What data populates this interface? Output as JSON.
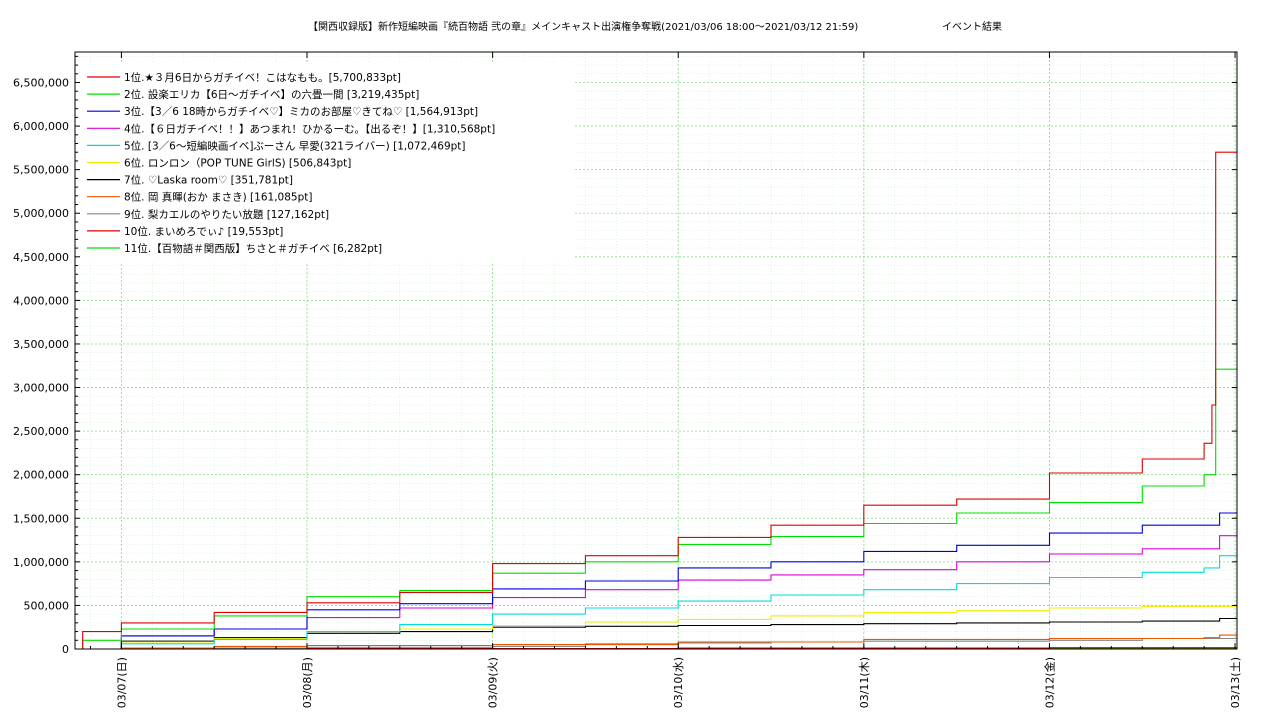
{
  "chart_data": {
    "type": "line",
    "title": "【関西収録版】新作短編映画『続百物語 弐の章』メインキャスト出演権争奪戦(2021/03/06 18:00〜2021/03/12 21:59)",
    "title_suffix": "イベント結果",
    "xlabel": "",
    "ylabel": "",
    "x_domain": [
      "2021-03-06 18:00",
      "2021-03-13 00:15"
    ],
    "ylim": [
      0,
      6850000
    ],
    "y_ticks": [
      0,
      500000,
      1000000,
      1500000,
      2000000,
      2500000,
      3000000,
      3500000,
      4000000,
      4500000,
      5000000,
      5500000,
      6000000,
      6500000
    ],
    "y_tick_labels": [
      "0",
      "500,000",
      "1,000,000",
      "1,500,000",
      "2,000,000",
      "2,500,000",
      "3,000,000",
      "3,500,000",
      "4,000,000",
      "4,500,000",
      "5,000,000",
      "5,500,000",
      "6,000,000",
      "6,500,000"
    ],
    "x_ticks": [
      "2021-03-07 00:00",
      "2021-03-08 00:00",
      "2021-03-09 00:00",
      "2021-03-10 00:00",
      "2021-03-11 00:00",
      "2021-03-12 00:00",
      "2021-03-13 00:00"
    ],
    "x_tick_labels": [
      "03/07(日)",
      "03/08(月)",
      "03/09(火)",
      "03/10(水)",
      "03/11(木)",
      "03/12(金)",
      "03/13(土)"
    ],
    "grid": true,
    "legend_position": "top-left",
    "series": [
      {
        "name": "1位.★３月6日からガチイベ！こはなもも。[5,700,833pt]",
        "color": "#dd0000",
        "points": [
          [
            "2021-03-06 18:00",
            0
          ],
          [
            "2021-03-06 19:00",
            200000
          ],
          [
            "2021-03-07 00:00",
            300000
          ],
          [
            "2021-03-07 12:00",
            420000
          ],
          [
            "2021-03-08 00:00",
            530000
          ],
          [
            "2021-03-08 12:00",
            650000
          ],
          [
            "2021-03-09 00:00",
            980000
          ],
          [
            "2021-03-09 12:00",
            1070000
          ],
          [
            "2021-03-10 00:00",
            1280000
          ],
          [
            "2021-03-10 12:00",
            1420000
          ],
          [
            "2021-03-11 00:00",
            1650000
          ],
          [
            "2021-03-11 12:00",
            1720000
          ],
          [
            "2021-03-12 00:00",
            2020000
          ],
          [
            "2021-03-12 12:00",
            2180000
          ],
          [
            "2021-03-12 20:00",
            2360000
          ],
          [
            "2021-03-12 21:00",
            2800000
          ],
          [
            "2021-03-12 21:30",
            5700000
          ],
          [
            "2021-03-13 00:15",
            5700833
          ]
        ]
      },
      {
        "name": "2位. 設楽エリカ【6日〜ガチイベ】の六畳一間 [3,219,435pt]",
        "color": "#00dd00",
        "points": [
          [
            "2021-03-06 18:00",
            0
          ],
          [
            "2021-03-06 19:00",
            100000
          ],
          [
            "2021-03-07 00:00",
            230000
          ],
          [
            "2021-03-07 12:00",
            380000
          ],
          [
            "2021-03-08 00:00",
            600000
          ],
          [
            "2021-03-08 12:00",
            670000
          ],
          [
            "2021-03-09 00:00",
            870000
          ],
          [
            "2021-03-09 12:00",
            1000000
          ],
          [
            "2021-03-10 00:00",
            1200000
          ],
          [
            "2021-03-10 12:00",
            1290000
          ],
          [
            "2021-03-11 00:00",
            1440000
          ],
          [
            "2021-03-11 12:00",
            1560000
          ],
          [
            "2021-03-12 00:00",
            1680000
          ],
          [
            "2021-03-12 12:00",
            1870000
          ],
          [
            "2021-03-12 20:00",
            2000000
          ],
          [
            "2021-03-12 21:30",
            3210000
          ],
          [
            "2021-03-13 00:15",
            3219435
          ]
        ]
      },
      {
        "name": "3位.【3／6 18時からガチイベ♡】ミカのお部屋♡きてね♡ [1,564,913pt]",
        "color": "#0000dd",
        "points": [
          [
            "2021-03-06 18:00",
            0
          ],
          [
            "2021-03-07 00:00",
            150000
          ],
          [
            "2021-03-07 12:00",
            230000
          ],
          [
            "2021-03-08 00:00",
            450000
          ],
          [
            "2021-03-08 12:00",
            520000
          ],
          [
            "2021-03-09 00:00",
            690000
          ],
          [
            "2021-03-09 12:00",
            780000
          ],
          [
            "2021-03-10 00:00",
            930000
          ],
          [
            "2021-03-10 12:00",
            1000000
          ],
          [
            "2021-03-11 00:00",
            1120000
          ],
          [
            "2021-03-11 12:00",
            1190000
          ],
          [
            "2021-03-12 00:00",
            1330000
          ],
          [
            "2021-03-12 12:00",
            1420000
          ],
          [
            "2021-03-12 22:00",
            1560000
          ],
          [
            "2021-03-13 00:15",
            1564913
          ]
        ]
      },
      {
        "name": "4位.【６日ガチイベ！！】あつまれ！ひかるーむ。【出るぞ！】[1,310,568pt]",
        "color": "#dd00dd",
        "points": [
          [
            "2021-03-06 18:00",
            0
          ],
          [
            "2021-03-07 00:00",
            150000
          ],
          [
            "2021-03-07 12:00",
            230000
          ],
          [
            "2021-03-08 00:00",
            360000
          ],
          [
            "2021-03-08 12:00",
            470000
          ],
          [
            "2021-03-09 00:00",
            590000
          ],
          [
            "2021-03-09 12:00",
            680000
          ],
          [
            "2021-03-10 00:00",
            790000
          ],
          [
            "2021-03-10 12:00",
            850000
          ],
          [
            "2021-03-11 00:00",
            910000
          ],
          [
            "2021-03-11 12:00",
            1000000
          ],
          [
            "2021-03-12 00:00",
            1090000
          ],
          [
            "2021-03-12 12:00",
            1150000
          ],
          [
            "2021-03-12 22:00",
            1300000
          ],
          [
            "2021-03-13 00:15",
            1310568
          ]
        ]
      },
      {
        "name": "5位. [3／6〜短編映画イベ]ぶーさん 早愛(321ライバー) [1,072,469pt]",
        "color": "#00dddd",
        "points": [
          [
            "2021-03-06 18:00",
            0
          ],
          [
            "2021-03-07 00:00",
            60000
          ],
          [
            "2021-03-07 12:00",
            110000
          ],
          [
            "2021-03-08 00:00",
            200000
          ],
          [
            "2021-03-08 12:00",
            280000
          ],
          [
            "2021-03-09 00:00",
            400000
          ],
          [
            "2021-03-09 12:00",
            470000
          ],
          [
            "2021-03-10 00:00",
            550000
          ],
          [
            "2021-03-10 12:00",
            620000
          ],
          [
            "2021-03-11 00:00",
            680000
          ],
          [
            "2021-03-11 12:00",
            750000
          ],
          [
            "2021-03-12 00:00",
            820000
          ],
          [
            "2021-03-12 12:00",
            880000
          ],
          [
            "2021-03-12 20:00",
            930000
          ],
          [
            "2021-03-12 22:00",
            1070000
          ],
          [
            "2021-03-13 00:15",
            1072469
          ]
        ]
      },
      {
        "name": "6位. ロンロン（POP TUNE GirlS) [506,843pt]",
        "color": "#eeee00",
        "points": [
          [
            "2021-03-06 18:00",
            0
          ],
          [
            "2021-03-07 00:00",
            80000
          ],
          [
            "2021-03-07 12:00",
            120000
          ],
          [
            "2021-03-08 00:00",
            200000
          ],
          [
            "2021-03-08 12:00",
            230000
          ],
          [
            "2021-03-09 00:00",
            270000
          ],
          [
            "2021-03-09 12:00",
            310000
          ],
          [
            "2021-03-10 00:00",
            340000
          ],
          [
            "2021-03-10 12:00",
            380000
          ],
          [
            "2021-03-11 00:00",
            420000
          ],
          [
            "2021-03-11 12:00",
            440000
          ],
          [
            "2021-03-12 00:00",
            470000
          ],
          [
            "2021-03-12 12:00",
            490000
          ],
          [
            "2021-03-13 00:15",
            506843
          ]
        ]
      },
      {
        "name": "7位. ♡Laska room♡ [351,781pt]",
        "color": "#000000",
        "points": [
          [
            "2021-03-06 18:00",
            0
          ],
          [
            "2021-03-07 00:00",
            90000
          ],
          [
            "2021-03-07 12:00",
            130000
          ],
          [
            "2021-03-08 00:00",
            180000
          ],
          [
            "2021-03-08 12:00",
            200000
          ],
          [
            "2021-03-09 00:00",
            250000
          ],
          [
            "2021-03-09 12:00",
            260000
          ],
          [
            "2021-03-10 00:00",
            270000
          ],
          [
            "2021-03-10 12:00",
            280000
          ],
          [
            "2021-03-11 00:00",
            290000
          ],
          [
            "2021-03-11 12:00",
            300000
          ],
          [
            "2021-03-12 00:00",
            310000
          ],
          [
            "2021-03-12 12:00",
            320000
          ],
          [
            "2021-03-12 22:00",
            350000
          ],
          [
            "2021-03-13 00:15",
            351781
          ]
        ]
      },
      {
        "name": "8位. 岡 真暉(おか まさき) [161,085pt]",
        "color": "#ee5500",
        "points": [
          [
            "2021-03-06 18:00",
            0
          ],
          [
            "2021-03-07 00:00",
            10000
          ],
          [
            "2021-03-07 12:00",
            30000
          ],
          [
            "2021-03-08 00:00",
            40000
          ],
          [
            "2021-03-09 00:00",
            50000
          ],
          [
            "2021-03-10 00:00",
            80000
          ],
          [
            "2021-03-11 00:00",
            110000
          ],
          [
            "2021-03-12 00:00",
            120000
          ],
          [
            "2021-03-12 20:00",
            130000
          ],
          [
            "2021-03-12 22:00",
            160000
          ],
          [
            "2021-03-13 00:15",
            161085
          ]
        ]
      },
      {
        "name": "9位. 梨カエルのやりたい放題 [127,162pt]",
        "color": "#888888",
        "points": [
          [
            "2021-03-06 18:00",
            0
          ],
          [
            "2021-03-07 00:00",
            10000
          ],
          [
            "2021-03-08 00:00",
            20000
          ],
          [
            "2021-03-09 00:00",
            30000
          ],
          [
            "2021-03-09 12:00",
            60000
          ],
          [
            "2021-03-10 00:00",
            70000
          ],
          [
            "2021-03-10 12:00",
            80000
          ],
          [
            "2021-03-11 00:00",
            90000
          ],
          [
            "2021-03-12 00:00",
            100000
          ],
          [
            "2021-03-12 12:00",
            120000
          ],
          [
            "2021-03-13 00:15",
            127162
          ]
        ]
      },
      {
        "name": "10位. まいめろでぃ♪ [19,553pt]",
        "color": "#dd0000",
        "points": [
          [
            "2021-03-06 18:00",
            0
          ],
          [
            "2021-03-08 00:00",
            5000
          ],
          [
            "2021-03-10 00:00",
            10000
          ],
          [
            "2021-03-12 00:00",
            15000
          ],
          [
            "2021-03-13 00:15",
            19553
          ]
        ]
      },
      {
        "name": "11位.【百物語＃関西版】ちさと＃ガチイベ [6,282pt]",
        "color": "#00dd00",
        "points": [
          [
            "2021-03-06 18:00",
            0
          ],
          [
            "2021-03-09 00:00",
            3000
          ],
          [
            "2021-03-12 00:00",
            5000
          ],
          [
            "2021-03-13 00:15",
            6282
          ]
        ]
      }
    ]
  }
}
